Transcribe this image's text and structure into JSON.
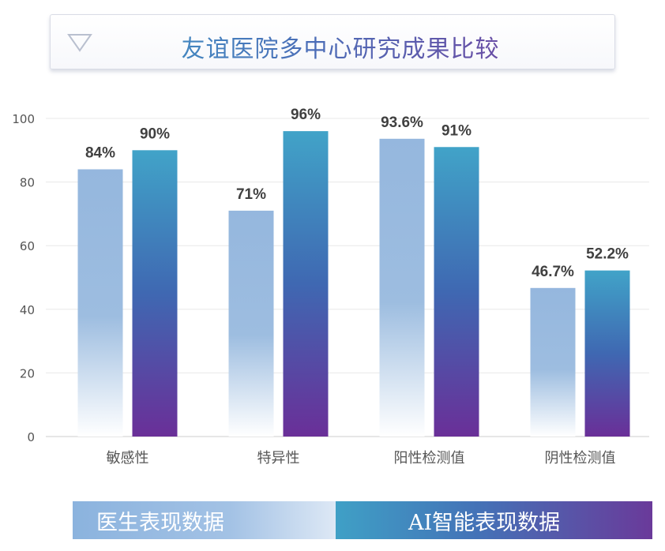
{
  "title": "友谊医院多中心研究成果比较",
  "legend": {
    "doctor": "医生表现数据",
    "ai": "AI智能表现数据"
  },
  "colors": {
    "doctor": "#95b7de",
    "ai_top": "#41a3c8",
    "ai_mid": "#3f68b2",
    "ai_bottom": "#6a2f98",
    "axis_text": "#555555",
    "value_text": "#404040",
    "grid": "#e8e8e8"
  },
  "chart_data": {
    "type": "bar",
    "categories": [
      "敏感性",
      "特异性",
      "阳性检测值",
      "阴性检测值"
    ],
    "series": [
      {
        "name": "医生表现数据",
        "values": [
          84,
          71,
          93.6,
          46.7
        ],
        "labels": [
          "84%",
          "71%",
          "93.6%",
          "46.7%"
        ]
      },
      {
        "name": "AI智能表现数据",
        "values": [
          90,
          96,
          91,
          52.2
        ],
        "labels": [
          "90%",
          "96%",
          "91%",
          "52.2%"
        ]
      }
    ],
    "ylim": [
      0,
      100
    ],
    "yticks": [
      0,
      20,
      40,
      60,
      80,
      100
    ],
    "grid": true,
    "legend_position": "bottom"
  }
}
